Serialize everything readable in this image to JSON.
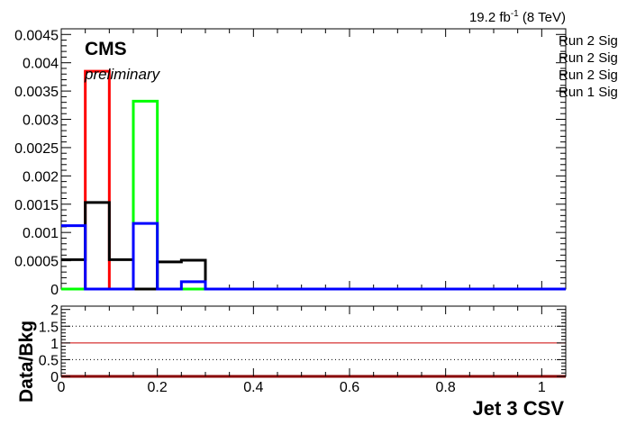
{
  "header": {
    "lumi_prefix": "19.2 fb",
    "lumi_exponent": "-1",
    "lumi_suffix": " (8 TeV)"
  },
  "labels": {
    "experiment": "CMS",
    "status": "preliminary"
  },
  "legend": {
    "entries": [
      "Run 2 Sig",
      "Run 2 Sig",
      "Run 2 Sig",
      "Run 1 Sig"
    ]
  },
  "colors": {
    "red": "#ff0000",
    "green": "#00ff00",
    "black": "#000000",
    "blue": "#0000ff",
    "ratio_line": "#cc0000",
    "ratio_points": "#880000"
  },
  "chart_data": [
    {
      "type": "histogram",
      "bin_edges": [
        0,
        0.05,
        0.1,
        0.15,
        0.2,
        0.25,
        0.3,
        0.35,
        0.4,
        0.45,
        0.5,
        0.55,
        0.6,
        0.65,
        0.7,
        0.75,
        0.8,
        0.85,
        0.9,
        0.95,
        1.0,
        1.05
      ],
      "xlim": [
        0,
        1.05
      ],
      "ylim": [
        0,
        0.0046
      ],
      "yticks": [
        0,
        0.0005,
        0.001,
        0.0015,
        0.002,
        0.0025,
        0.003,
        0.0035,
        0.004,
        0.0045
      ],
      "ytick_labels": [
        "0",
        "0.0005",
        "0.001",
        "0.0015",
        "0.002",
        "0.0025",
        "0.003",
        "0.0035",
        "0.004",
        "0.0045"
      ],
      "series": [
        {
          "color": "#ff0000",
          "values": [
            0,
            0.00385,
            0,
            0,
            0,
            0,
            0,
            0,
            0,
            0,
            0,
            0,
            0,
            0,
            0,
            0,
            0,
            0,
            0,
            0,
            0
          ]
        },
        {
          "color": "#00ff00",
          "values": [
            0,
            0,
            0,
            0.00332,
            0,
            0,
            0,
            0,
            0,
            0,
            0,
            0,
            0,
            0,
            0,
            0,
            0,
            0,
            0,
            0,
            0
          ]
        },
        {
          "color": "#000000",
          "values": [
            0.00052,
            0.00153,
            0.00052,
            0,
            0.00048,
            0.00051,
            0,
            0,
            0,
            0,
            0,
            0,
            0,
            0,
            0,
            0,
            0,
            0,
            0,
            0,
            0
          ]
        },
        {
          "color": "#0000ff",
          "values": [
            0.00112,
            0,
            0,
            0.00116,
            0,
            0.00013,
            0,
            0,
            0,
            0,
            0,
            0,
            0,
            0,
            0,
            0,
            0,
            0,
            0,
            0,
            0
          ]
        }
      ]
    },
    {
      "type": "line",
      "ylabel": "Data/Bkg",
      "xlabel": "Jet 3 CSV",
      "xlim": [
        0,
        1.05
      ],
      "ylim": [
        0,
        2.1
      ],
      "yticks": [
        0,
        0.5,
        1,
        1.5,
        2
      ],
      "ytick_labels": [
        "0",
        "0.5",
        "1",
        "1.5",
        "2"
      ],
      "xticks": [
        0,
        0.2,
        0.4,
        0.6,
        0.8,
        1
      ],
      "xtick_labels": [
        "0",
        "0.2",
        "0.4",
        "0.6",
        "0.8",
        "1"
      ],
      "reference_lines": [
        {
          "y": 1,
          "style": "solid",
          "color": "#cc0000"
        },
        {
          "y": 0.5,
          "style": "dotted"
        },
        {
          "y": 1.5,
          "style": "dotted"
        }
      ],
      "points_y": 0
    }
  ]
}
